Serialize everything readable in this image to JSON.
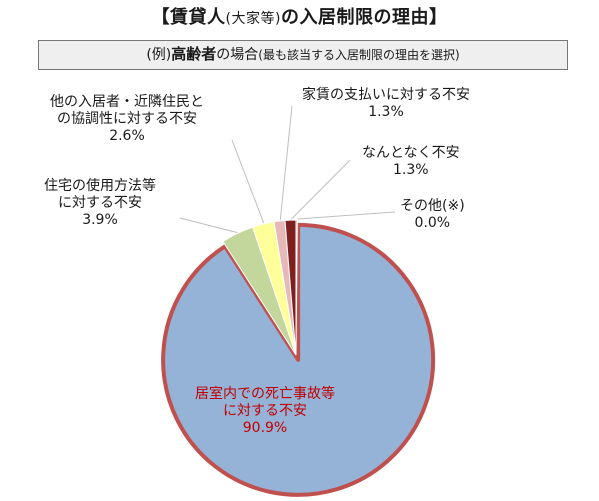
{
  "title": {
    "open_bracket": "【",
    "part1": "賃貸人",
    "paren": "(大家等)",
    "part2": "の入居制限の理由",
    "close_bracket": "】"
  },
  "subtitle": {
    "prefix": "(例)",
    "bold": "高齢者",
    "suffix": "の場合",
    "note": "(最も該当する入居制限の理由を選択)"
  },
  "chart_data": {
    "type": "pie",
    "slices": [
      {
        "label_lines": [
          "居室内での死亡事故等",
          "に対する不安"
        ],
        "value": 90.9,
        "value_text": "90.9%",
        "color": "#95b3d7",
        "label_color": "#c00000"
      },
      {
        "label_lines": [
          "住宅の使用方法等",
          "に対する不安"
        ],
        "value": 3.9,
        "value_text": "3.9%",
        "color": "#c3d69b",
        "label_color": "#1a1a1a"
      },
      {
        "label_lines": [
          "他の入居者・近隣住民と",
          "の協調性に対する不安"
        ],
        "value": 2.6,
        "value_text": "2.6%",
        "color": "#ffff99",
        "label_color": "#1a1a1a"
      },
      {
        "label_lines": [
          "家賃の支払いに対する不安"
        ],
        "value": 1.3,
        "value_text": "1.3%",
        "color": "#e6b9b8",
        "label_color": "#1a1a1a"
      },
      {
        "label_lines": [
          "なんとなく不安"
        ],
        "value": 1.3,
        "value_text": "1.3%",
        "color": "#7f2020",
        "label_color": "#1a1a1a"
      },
      {
        "label_lines": [
          "その他(※)"
        ],
        "value": 0.0,
        "value_text": "0.0%",
        "color": "#9d9d9d",
        "label_color": "#1a1a1a"
      }
    ],
    "colors": {
      "outline": "#c0504d",
      "leader": "#bfbfbf"
    }
  }
}
